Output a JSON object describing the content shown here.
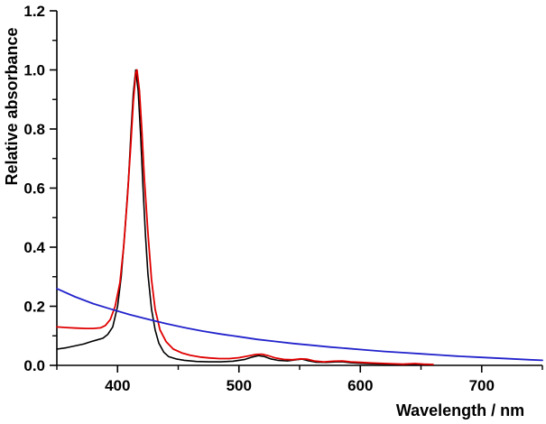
{
  "chart_data": {
    "type": "line",
    "title": "",
    "xlabel": "Wavelength / nm",
    "ylabel": "Relative absorbance",
    "xlim": [
      350,
      750
    ],
    "ylim": [
      0.0,
      1.2
    ],
    "x_major_ticks": [
      400,
      500,
      600,
      700
    ],
    "x_minor_step": 50,
    "y_major_ticks": [
      0.0,
      0.2,
      0.4,
      0.6,
      0.8,
      1.0,
      1.2
    ],
    "y_minor_step": 0.1,
    "grid": false,
    "legend": "none",
    "axis_color": "#000000",
    "series": [
      {
        "name": "black-spectrum",
        "color": "#000000",
        "stroke_width": 1.6,
        "x": [
          350,
          358,
          365,
          372,
          378,
          383,
          388,
          392,
          396,
          400,
          403,
          406,
          409,
          411,
          413,
          415,
          417,
          419,
          421,
          423,
          425,
          428,
          431,
          434,
          438,
          442,
          448,
          455,
          465,
          475,
          485,
          495,
          505,
          511,
          516,
          521,
          526,
          532,
          540,
          547,
          552,
          557,
          563,
          572,
          580,
          586,
          592,
          600,
          615,
          630,
          645,
          655
        ],
        "y": [
          0.055,
          0.06,
          0.066,
          0.072,
          0.08,
          0.086,
          0.092,
          0.105,
          0.13,
          0.2,
          0.3,
          0.45,
          0.63,
          0.78,
          0.92,
          1.0,
          0.93,
          0.78,
          0.6,
          0.44,
          0.31,
          0.19,
          0.12,
          0.075,
          0.045,
          0.03,
          0.022,
          0.017,
          0.013,
          0.012,
          0.012,
          0.014,
          0.02,
          0.028,
          0.033,
          0.03,
          0.022,
          0.017,
          0.015,
          0.019,
          0.021,
          0.016,
          0.011,
          0.01,
          0.012,
          0.012,
          0.009,
          0.007,
          0.005,
          0.004,
          0.003,
          0.003
        ]
      },
      {
        "name": "red-spectrum",
        "color": "#e00000",
        "stroke_width": 1.8,
        "x": [
          350,
          358,
          366,
          374,
          380,
          386,
          390,
          394,
          398,
          402,
          405,
          408,
          411,
          413,
          415,
          416,
          418,
          420,
          422,
          425,
          428,
          431,
          435,
          440,
          446,
          453,
          460,
          468,
          476,
          484,
          492,
          500,
          508,
          514,
          519,
          524,
          530,
          537,
          544,
          551,
          556,
          562,
          570,
          578,
          585,
          592,
          600,
          610,
          622,
          635,
          645,
          652,
          660
        ],
        "y": [
          0.13,
          0.128,
          0.126,
          0.125,
          0.125,
          0.127,
          0.135,
          0.155,
          0.2,
          0.28,
          0.4,
          0.56,
          0.75,
          0.89,
          0.99,
          1.0,
          0.93,
          0.8,
          0.64,
          0.45,
          0.29,
          0.19,
          0.12,
          0.08,
          0.055,
          0.042,
          0.034,
          0.028,
          0.025,
          0.023,
          0.023,
          0.026,
          0.032,
          0.037,
          0.038,
          0.033,
          0.025,
          0.02,
          0.019,
          0.022,
          0.021,
          0.015,
          0.012,
          0.014,
          0.015,
          0.012,
          0.01,
          0.008,
          0.006,
          0.004,
          0.006,
          0.004,
          0.003
        ]
      },
      {
        "name": "blue-baseline",
        "color": "#2222cc",
        "stroke_width": 1.8,
        "x": [
          350,
          365,
          380,
          395,
          410,
          425,
          440,
          455,
          470,
          485,
          500,
          515,
          530,
          545,
          560,
          575,
          590,
          605,
          620,
          635,
          650,
          665,
          680,
          695,
          710,
          725,
          740,
          750
        ],
        "y": [
          0.26,
          0.232,
          0.209,
          0.19,
          0.172,
          0.156,
          0.141,
          0.128,
          0.116,
          0.106,
          0.097,
          0.088,
          0.081,
          0.074,
          0.068,
          0.062,
          0.057,
          0.052,
          0.047,
          0.043,
          0.039,
          0.035,
          0.031,
          0.028,
          0.025,
          0.022,
          0.019,
          0.017
        ]
      }
    ]
  }
}
